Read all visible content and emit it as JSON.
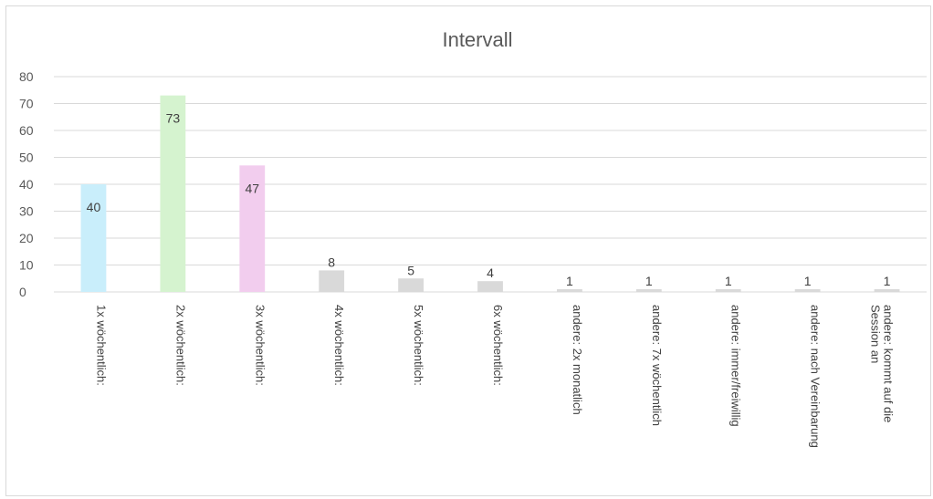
{
  "chart_data": {
    "type": "bar",
    "title": "Intervall",
    "xlabel": "",
    "ylabel": "",
    "ylim": [
      0,
      80
    ],
    "yticks": [
      0,
      10,
      20,
      30,
      40,
      50,
      60,
      70,
      80
    ],
    "grid": true,
    "legend": "none",
    "categories": [
      [
        "1x wöchentlich:"
      ],
      [
        "2x wöchentlich:"
      ],
      [
        "3x wöchentlich:"
      ],
      [
        "4x wöchentlich:"
      ],
      [
        "5x wöchentlich:"
      ],
      [
        "6x wöchentlich:"
      ],
      [
        "andere: 2x monatlich"
      ],
      [
        "andere: 7x wöchentlich"
      ],
      [
        "andere: immer/freiwillig"
      ],
      [
        "andere: nach Vereinbarung"
      ],
      [
        "andere: kommt auf die",
        "Session an"
      ]
    ],
    "values": [
      40,
      73,
      47,
      8,
      5,
      4,
      1,
      1,
      1,
      1,
      1
    ],
    "colors": [
      "#c9eefb",
      "#d5f3cf",
      "#f2cdee",
      "#d9d9d9",
      "#d9d9d9",
      "#d9d9d9",
      "#d9d9d9",
      "#d9d9d9",
      "#d9d9d9",
      "#d9d9d9",
      "#d9d9d9"
    ]
  }
}
